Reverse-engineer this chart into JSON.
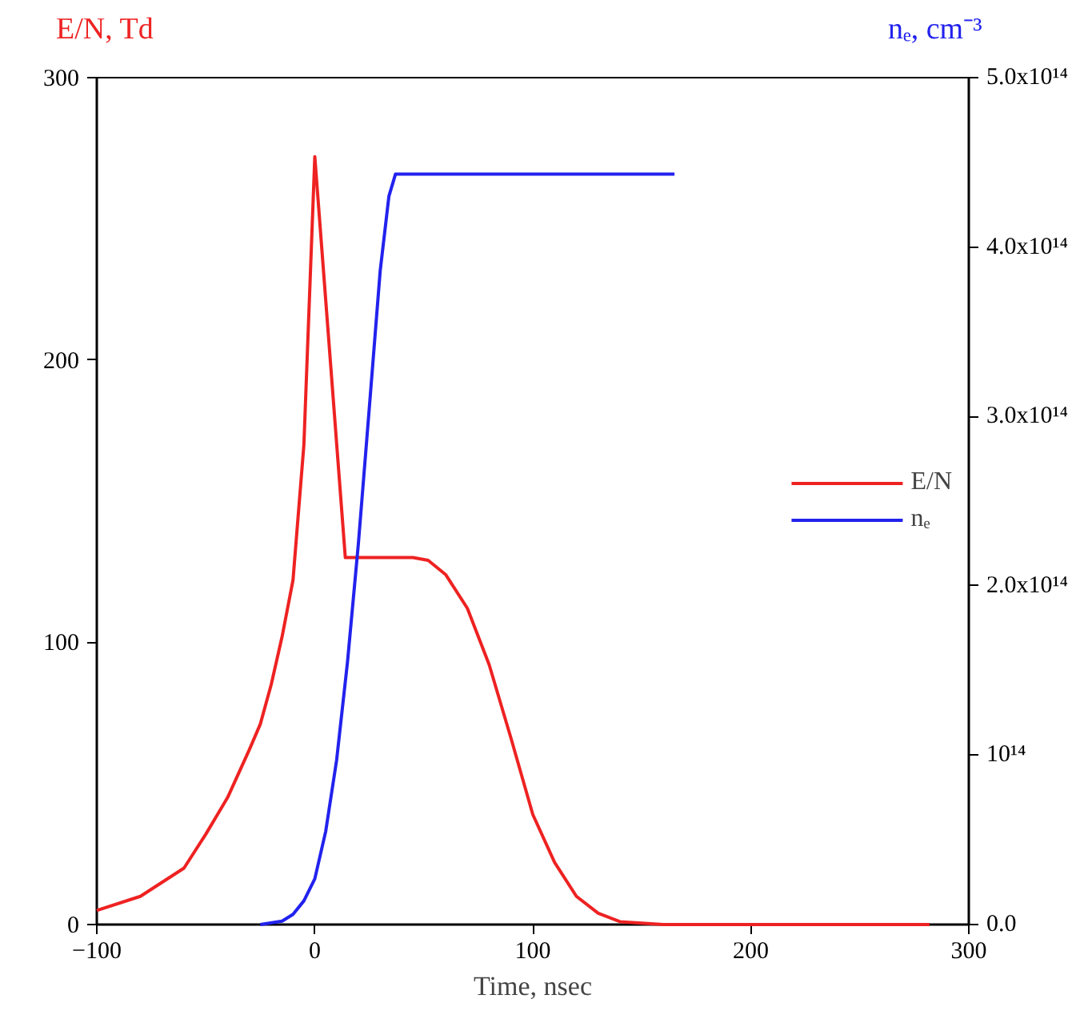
{
  "chart_data": {
    "type": "line",
    "xlabel": "Time, nsec",
    "ylabel": "E/N, Td",
    "y2label": "nₑ, cm⁻³",
    "xlim": [
      -100,
      300
    ],
    "xticks": [
      -100,
      0,
      100,
      200,
      300
    ],
    "ylim": [
      0,
      300
    ],
    "yticks": [
      0,
      100,
      200,
      300
    ],
    "y2lim": [
      0,
      500000000000000.0
    ],
    "y2ticks": [
      {
        "value": 0,
        "label": "0.0"
      },
      {
        "value": 100000000000000.0,
        "label": "10¹⁴"
      },
      {
        "value": 200000000000000.0,
        "label": "2.0x10¹⁴"
      },
      {
        "value": 300000000000000.0,
        "label": "3.0x10¹⁴"
      },
      {
        "value": 400000000000000.0,
        "label": "4.0x10¹⁴"
      },
      {
        "value": 500000000000000.0,
        "label": "5.0x10¹⁴"
      }
    ],
    "grid": false,
    "legend": "right",
    "series": [
      {
        "name": "E/N",
        "color": "#ee2222",
        "x": [
          -100,
          -80,
          -60,
          -50,
          -40,
          -30,
          -25,
          -20,
          -15,
          -10,
          -5,
          0,
          14,
          30,
          45,
          52,
          60,
          70,
          80,
          90,
          100,
          110,
          120,
          130,
          140,
          160,
          200,
          282
        ],
        "values": [
          5,
          10,
          20,
          32,
          45,
          62,
          71,
          85,
          102,
          122,
          170,
          272,
          130,
          130,
          130,
          129,
          124,
          112,
          92,
          66,
          39,
          22,
          10,
          4,
          1,
          0,
          0,
          0
        ]
      },
      {
        "name": "nₑ",
        "color": "#2222ee",
        "axis": "y2",
        "x": [
          -25,
          -15,
          -10,
          -5,
          0,
          5,
          10,
          15,
          20,
          25,
          30,
          34,
          37,
          40,
          165
        ],
        "values": [
          0,
          2000000000000.0,
          6000000000000.0,
          14000000000000.0,
          27000000000000.0,
          55000000000000.0,
          97000000000000.0,
          155000000000000.0,
          225000000000000.0,
          305000000000000.0,
          386000000000000.0,
          430000000000000.0,
          443000000000000.0,
          443000000000000.0,
          443000000000000.0
        ]
      }
    ]
  }
}
